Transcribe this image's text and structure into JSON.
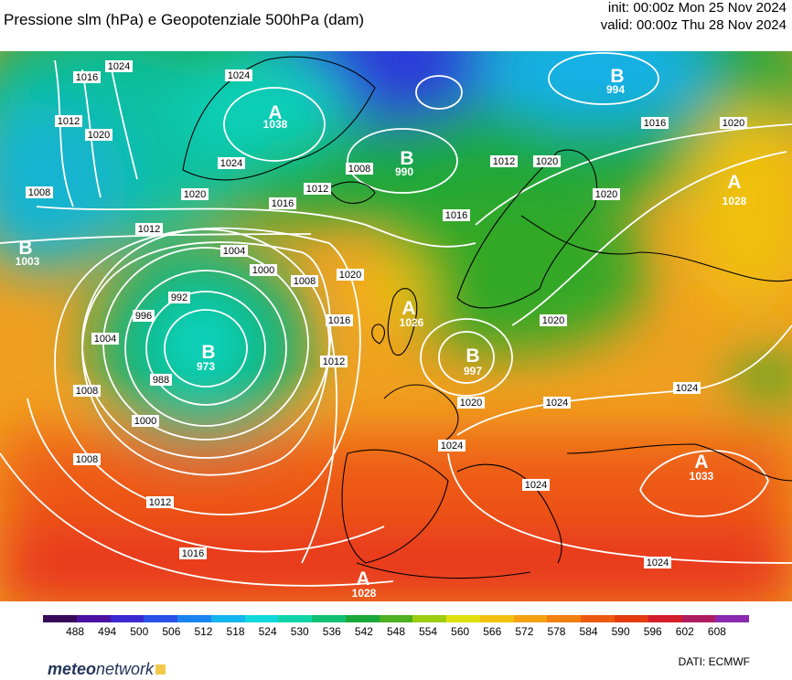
{
  "header": {
    "title": "Pressione slm (hPa) e Geopotenziale 500hPa (dam)",
    "init": "init: 00:00z Mon 25 Nov 2024",
    "valid": "valid: 00:00z Thu 28 Nov 2024"
  },
  "colorbar": {
    "ticks": [
      "488",
      "494",
      "500",
      "506",
      "512",
      "518",
      "524",
      "530",
      "536",
      "542",
      "548",
      "554",
      "560",
      "566",
      "572",
      "578",
      "584",
      "590",
      "596",
      "602",
      "608"
    ],
    "colors": [
      "#3a0a5a",
      "#4b10a0",
      "#3a28d0",
      "#2850e8",
      "#1a84ee",
      "#14b4ec",
      "#10d8d8",
      "#10d4a8",
      "#10c070",
      "#1aa83a",
      "#4cb020",
      "#9ccc10",
      "#e0e010",
      "#f4c010",
      "#f4a010",
      "#f08010",
      "#ec5a10",
      "#e43a10",
      "#d41c2a",
      "#b01c60",
      "#8a2ab0"
    ]
  },
  "isobars": [
    {
      "label": "1024"
    },
    {
      "label": "1016"
    },
    {
      "label": "1012"
    },
    {
      "label": "1020"
    },
    {
      "label": "1008"
    },
    {
      "label": "1004"
    },
    {
      "label": "1000"
    },
    {
      "label": "996"
    },
    {
      "label": "992"
    },
    {
      "label": "988"
    }
  ],
  "pressure_centers": [
    {
      "type": "A",
      "value": "1038"
    },
    {
      "type": "B",
      "value": "990"
    },
    {
      "type": "B",
      "value": "994"
    },
    {
      "type": "A",
      "value": "1028"
    },
    {
      "type": "B",
      "value": "1003"
    },
    {
      "type": "B",
      "value": "973"
    },
    {
      "type": "A",
      "value": "1026"
    },
    {
      "type": "B",
      "value": "997"
    },
    {
      "type": "A",
      "value": "1033"
    },
    {
      "type": "A",
      "value": "1028"
    }
  ],
  "footer": {
    "brand_bold": "meteo",
    "brand_light": "network",
    "credit": "DATI:  ECMWF"
  }
}
